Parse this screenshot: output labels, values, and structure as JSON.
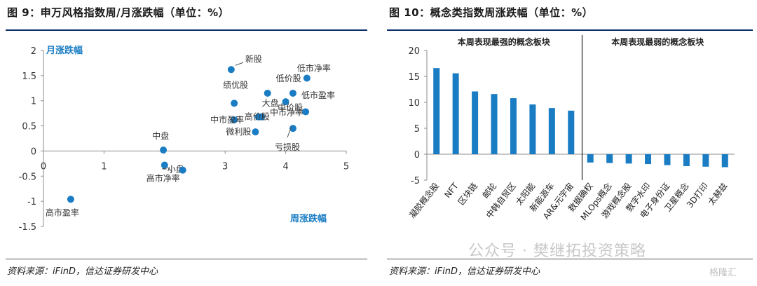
{
  "left": {
    "title": "图 9：申万风格指数周/月涨跌幅（单位：%）",
    "source": "资料来源：iFinD，信达证券研发中心"
  },
  "right": {
    "title": "图 10：概念类指数周涨跌幅（单位：%）",
    "source": "资料来源：iFinD，信达证券研发中心"
  },
  "watermark": {
    "text": "公众号 · 樊继拓投资策略",
    "logo": "格隆汇"
  },
  "colors": {
    "point": "#1a7dc4",
    "bar": "#1a7dc4",
    "rule": "#0b2f67",
    "axis_title": "#1a7dc4"
  },
  "chart_data": [
    {
      "type": "scatter",
      "xlabel": "周涨跌幅",
      "ylabel": "月涨跌幅",
      "xlim": [
        0,
        5
      ],
      "ylim": [
        -1.5,
        2
      ],
      "xticks": [
        0,
        1,
        2,
        3,
        4,
        5
      ],
      "yticks": [
        -1.5,
        -1,
        -0.5,
        0,
        0.5,
        1,
        1.5,
        2
      ],
      "points": [
        {
          "label": "新股",
          "x": 3.1,
          "y": 1.62
        },
        {
          "label": "绩优股",
          "x": 3.15,
          "y": 0.95
        },
        {
          "label": "低市净率",
          "x": 4.35,
          "y": 1.45
        },
        {
          "label": "低价股",
          "x": 3.7,
          "y": 1.15
        },
        {
          "label": "低市盈率",
          "x": 4.12,
          "y": 1.15
        },
        {
          "label": "大盘",
          "x": 4.0,
          "y": 0.98
        },
        {
          "label": "中市净率",
          "x": 3.6,
          "y": 0.68
        },
        {
          "label": "中价股",
          "x": 4.33,
          "y": 0.78
        },
        {
          "label": "中市盈率",
          "x": 3.15,
          "y": 0.62
        },
        {
          "label": "高价股",
          "x": 3.55,
          "y": 0.68
        },
        {
          "label": "微利股",
          "x": 3.5,
          "y": 0.38
        },
        {
          "label": "亏损股",
          "x": 4.12,
          "y": 0.45
        },
        {
          "label": "中盘",
          "x": 1.98,
          "y": 0.02
        },
        {
          "label": "小盘",
          "x": 2.0,
          "y": -0.28
        },
        {
          "label": "高市净率",
          "x": 2.3,
          "y": -0.38
        },
        {
          "label": "高市盈率",
          "x": 0.45,
          "y": -0.96
        }
      ]
    },
    {
      "type": "bar",
      "ylim": [
        -5,
        20
      ],
      "yticks": [
        -5,
        0,
        5,
        10,
        15,
        20
      ],
      "groups": [
        "本周表现最强的概念板块",
        "本周表现最弱的概念板块"
      ],
      "categories": [
        "凝胶概念股",
        "NFT",
        "区块链",
        "邮轮",
        "中韩自贸区",
        "太阳能",
        "新能源车",
        "AR&元宇宙",
        "数据确权",
        "MLOps概念",
        "游戏概念股",
        "数字水印",
        "电子身份证",
        "卫星概念",
        "3D打印",
        "太赫兹"
      ],
      "values": [
        16.6,
        15.6,
        12.1,
        11.6,
        10.8,
        9.6,
        8.9,
        8.4,
        -1.6,
        -1.7,
        -1.8,
        -1.9,
        -2.1,
        -2.3,
        -2.4,
        -2.5
      ]
    }
  ]
}
